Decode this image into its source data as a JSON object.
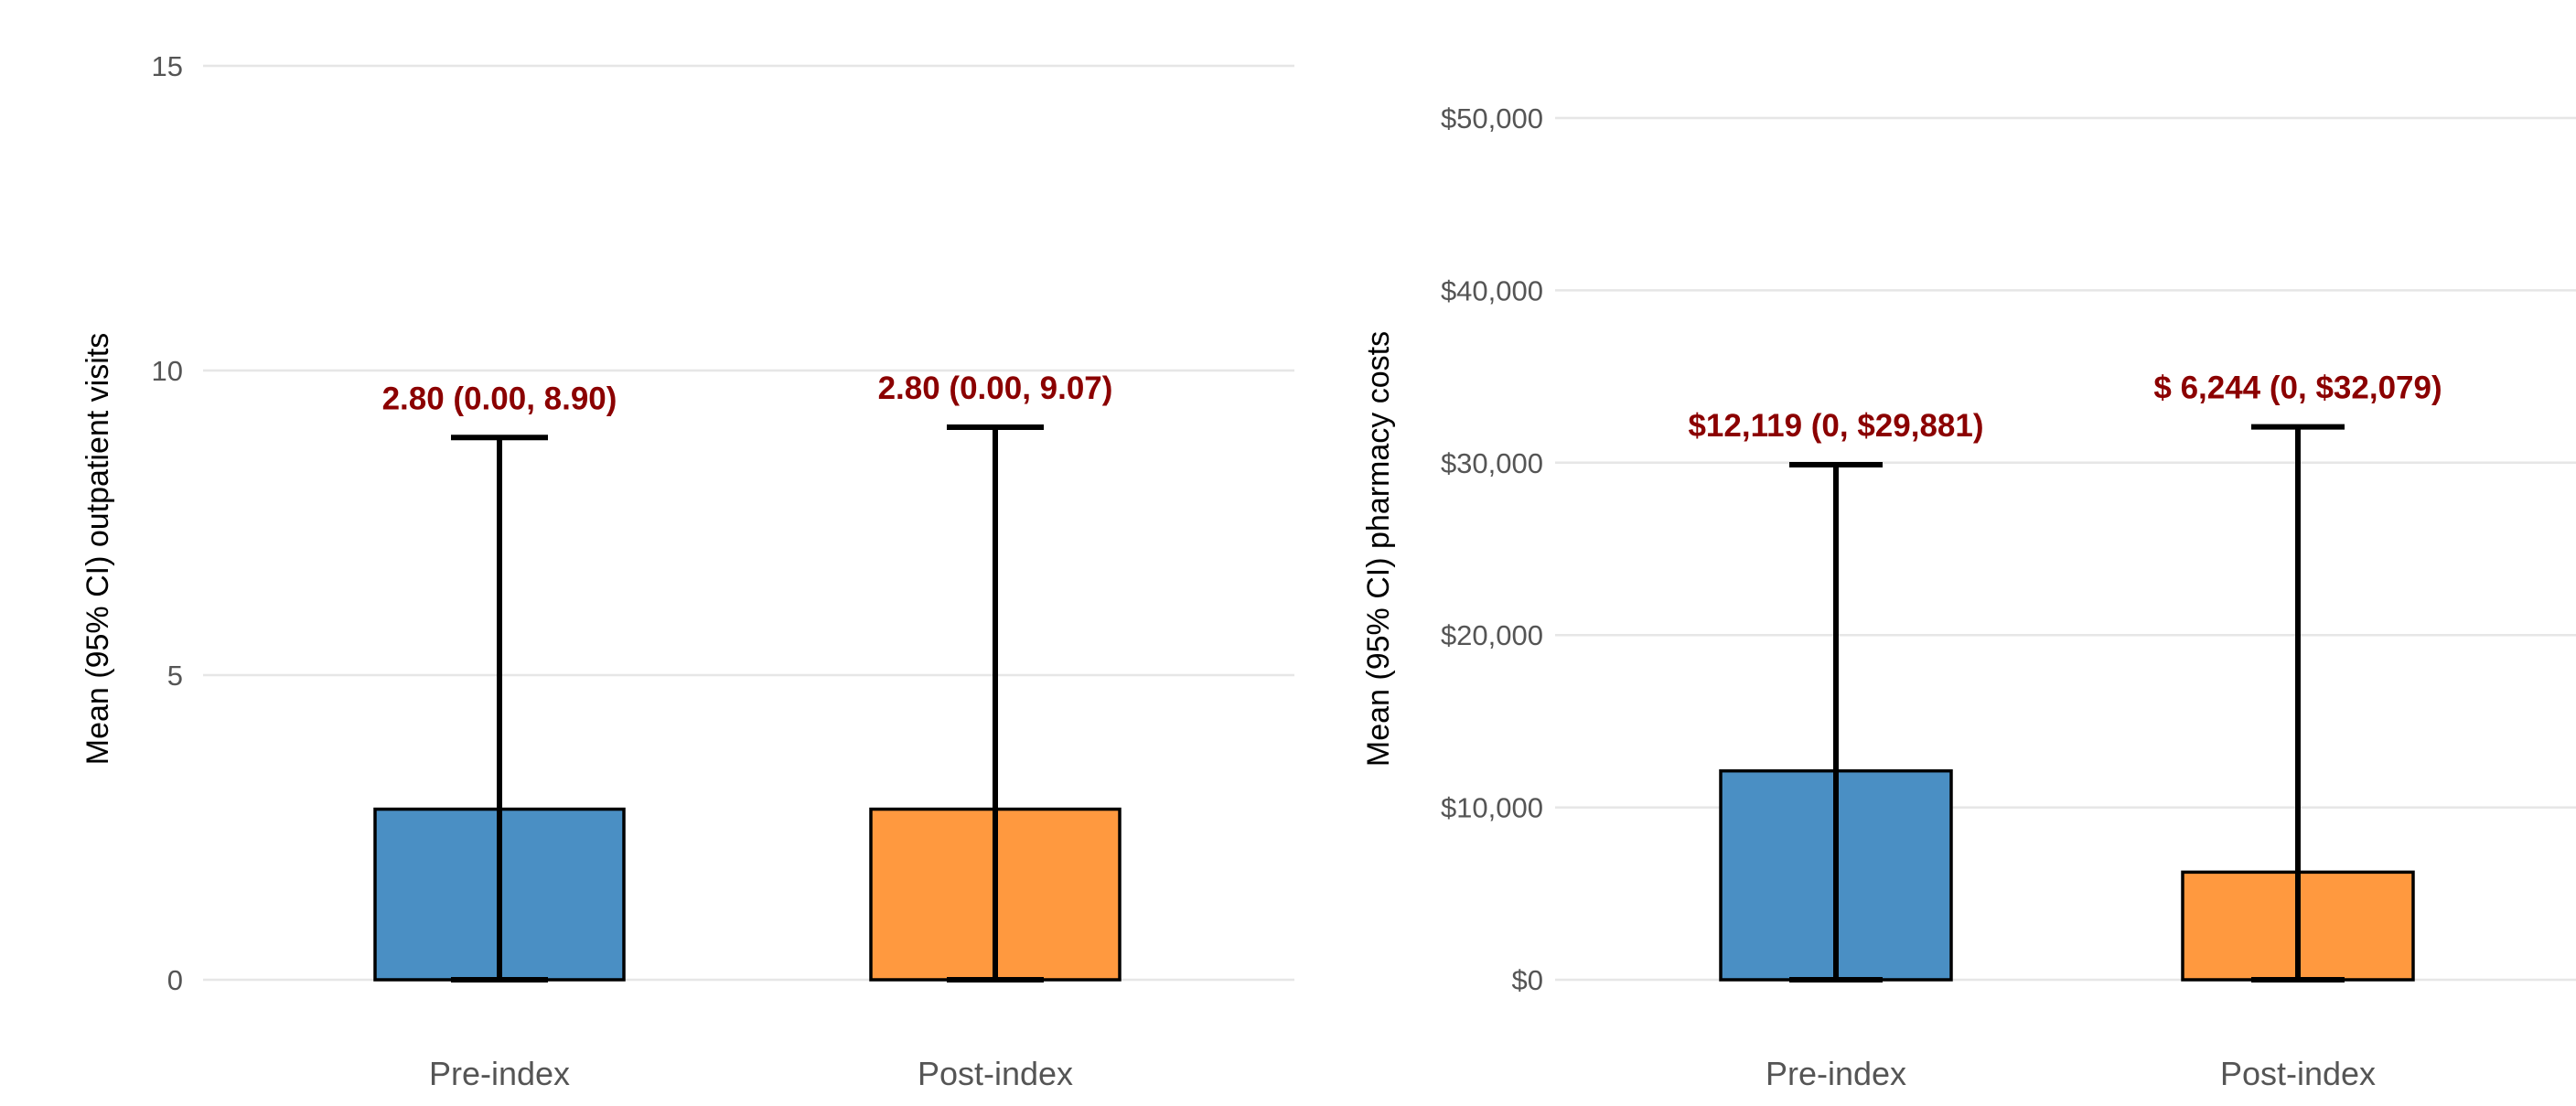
{
  "chart_data": [
    {
      "type": "bar",
      "title": "",
      "xlabel": "",
      "ylabel": "Mean (95% CI) outpatient visits",
      "categories": [
        "Pre-index",
        "Post-index"
      ],
      "values": [
        2.8,
        2.8
      ],
      "ci_lower": [
        0.0,
        0.0
      ],
      "ci_upper": [
        8.9,
        9.07
      ],
      "bar_colors": [
        "#4a8fc4",
        "#ff993f"
      ],
      "data_labels": [
        "2.80 (0.00, 8.90)",
        "2.80 (0.00, 9.07)"
      ],
      "ylim": [
        0,
        15
      ],
      "yticks": [
        0,
        5,
        10,
        15
      ],
      "ytick_labels": [
        "0",
        "5",
        "10",
        "15"
      ],
      "grid": true
    },
    {
      "type": "bar",
      "title": "",
      "xlabel": "",
      "ylabel": "Mean (95% CI) pharmacy costs",
      "categories": [
        "Pre-index",
        "Post-index"
      ],
      "values": [
        12119,
        6244
      ],
      "ci_lower": [
        0,
        0
      ],
      "ci_upper": [
        29881,
        32079
      ],
      "bar_colors": [
        "#4a8fc4",
        "#ff993f"
      ],
      "data_labels": [
        "$12,119 (0, $29,881)",
        "$ 6,244 (0, $32,079)"
      ],
      "ylim": [
        0,
        50000
      ],
      "yticks": [
        0,
        10000,
        20000,
        30000,
        40000,
        50000
      ],
      "ytick_labels": [
        "$0",
        "$10,000",
        "$20,000",
        "$30,000",
        "$40,000",
        "$50,000"
      ],
      "grid": true
    }
  ],
  "colors": {
    "label_text": "#8b0000",
    "error_bar": "#000000",
    "grid": "#e6e6e6"
  }
}
